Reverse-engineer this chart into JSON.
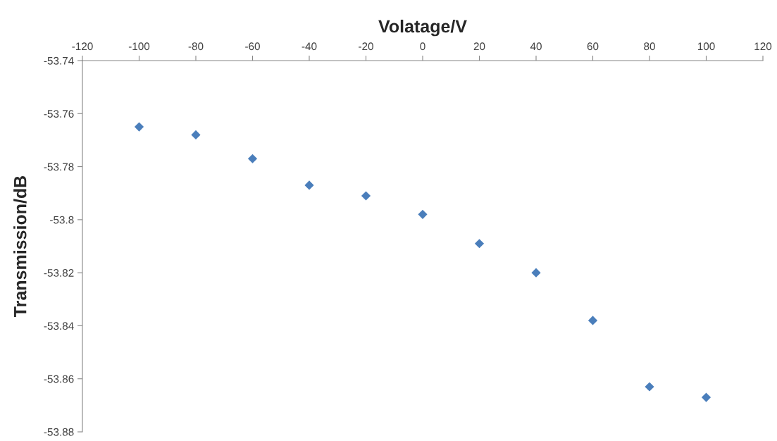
{
  "chart_data": {
    "type": "scatter",
    "xlabel": "Volatage/V",
    "ylabel": "Transmission/dB",
    "x": [
      -100,
      -80,
      -60,
      -40,
      -20,
      0,
      20,
      40,
      60,
      80,
      100
    ],
    "series": [
      {
        "color": "#4a7ebb",
        "values": [
          -53.765,
          -53.768,
          -53.777,
          -53.787,
          -53.791,
          -53.798,
          -53.809,
          -53.82,
          -53.838,
          -53.863,
          -53.867
        ]
      }
    ],
    "xlim": [
      -120,
      120
    ],
    "xticks": [
      -120,
      -100,
      -80,
      -60,
      -40,
      -20,
      0,
      20,
      40,
      60,
      80,
      100,
      120
    ],
    "ylim": [
      -53.88,
      -53.74
    ],
    "yticks": [
      -53.74,
      -53.76,
      -53.78,
      -53.8,
      -53.82,
      -53.84,
      -53.86,
      -53.88
    ],
    "marker": "diamond",
    "grid": false,
    "legend": false
  }
}
